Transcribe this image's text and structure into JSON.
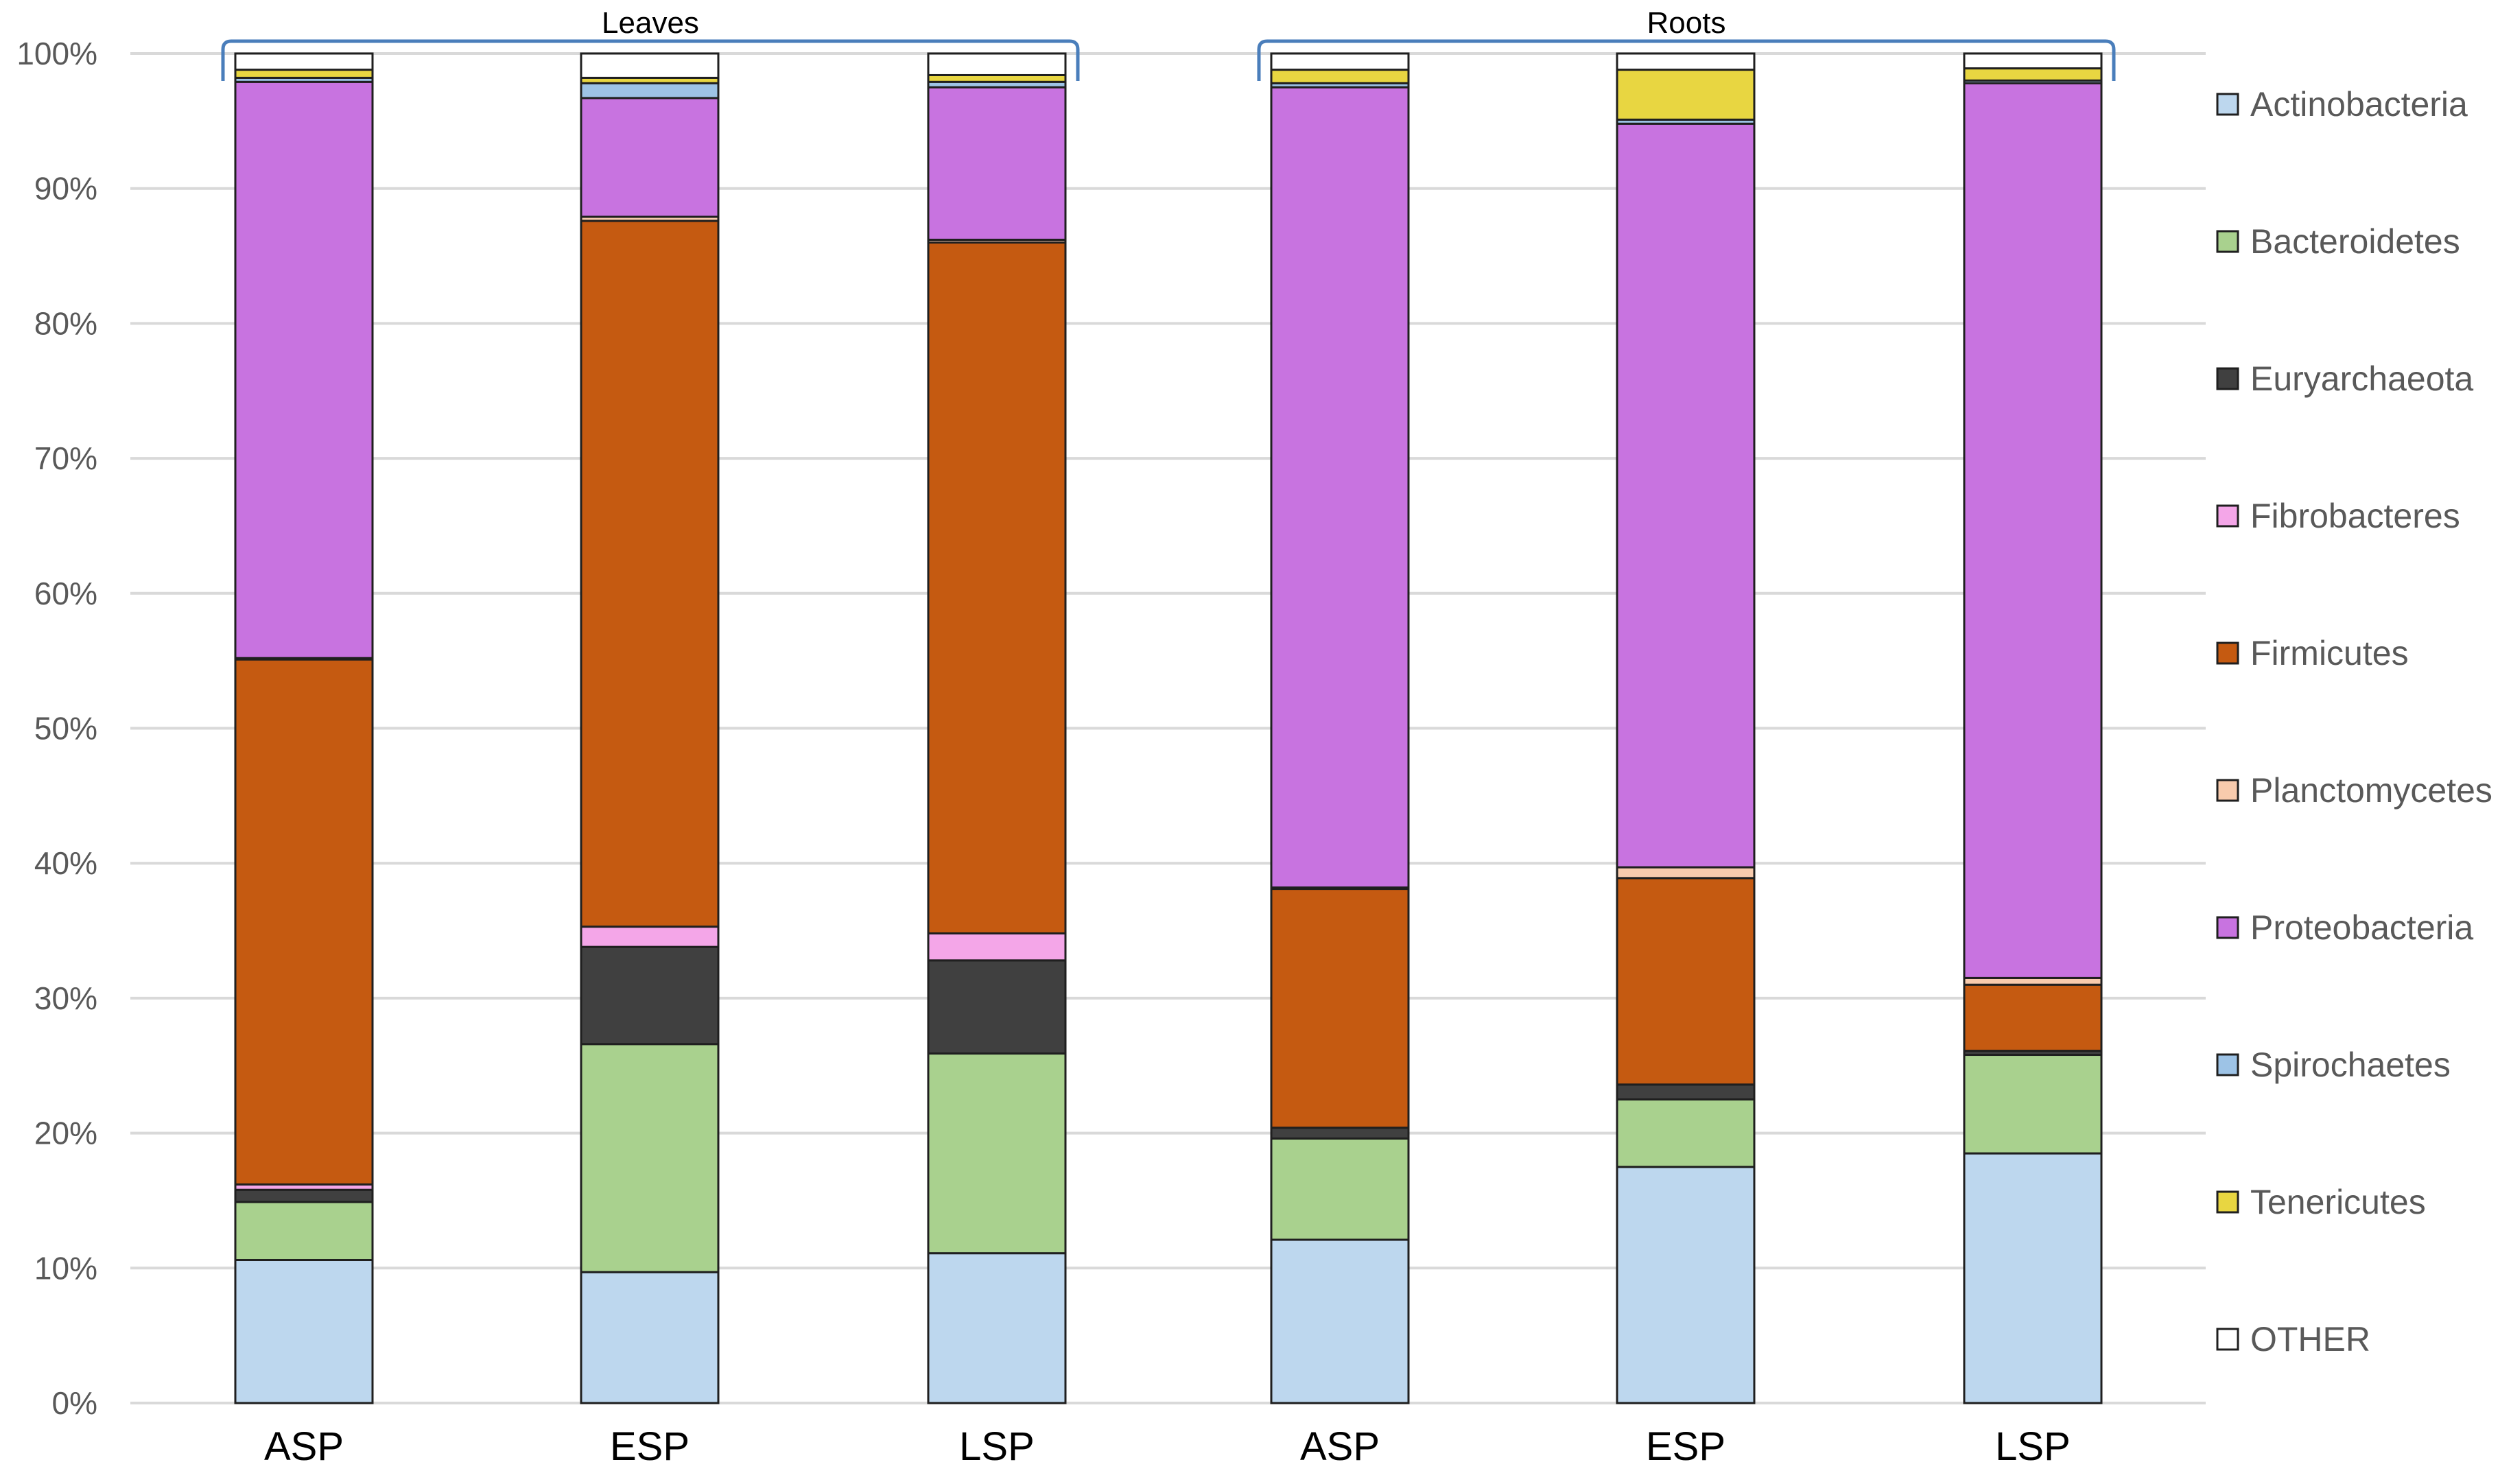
{
  "chart_data": {
    "type": "bar",
    "stacked": true,
    "percent": true,
    "title": "",
    "xlabel": "",
    "ylabel": "",
    "ylim": [
      0,
      100
    ],
    "yticks": [
      "0%",
      "10%",
      "20%",
      "30%",
      "40%",
      "50%",
      "60%",
      "70%",
      "80%",
      "90%",
      "100%"
    ],
    "groups": [
      {
        "label": "Leaves",
        "categories": [
          0,
          1,
          2
        ]
      },
      {
        "label": "Roots",
        "categories": [
          3,
          4,
          5
        ]
      }
    ],
    "categories": [
      "ASP",
      "ESP",
      "LSP",
      "ASP",
      "ESP",
      "LSP"
    ],
    "series": [
      {
        "name": "Actinobacteria",
        "color": "#bdd7ee",
        "values": [
          10.6,
          9.7,
          11.1,
          12.1,
          17.5,
          18.5
        ]
      },
      {
        "name": "Bacteroidetes",
        "color": "#a9d18e",
        "values": [
          4.3,
          16.9,
          14.8,
          7.5,
          5.0,
          7.3
        ]
      },
      {
        "name": "Euryarchaeota",
        "color": "#404040",
        "values": [
          0.9,
          7.2,
          6.9,
          0.8,
          1.1,
          0.3
        ]
      },
      {
        "name": "Fibrobacteres",
        "color": "#f4a6e8",
        "values": [
          0.4,
          1.5,
          2.0,
          0.0,
          0.0,
          0.0
        ]
      },
      {
        "name": "Firmicutes",
        "color": "#c55a11",
        "values": [
          38.9,
          52.3,
          51.2,
          17.7,
          15.3,
          4.9
        ]
      },
      {
        "name": "Planctomycetes",
        "color": "#f8cbad",
        "values": [
          0.1,
          0.3,
          0.2,
          0.1,
          0.8,
          0.5
        ]
      },
      {
        "name": "Proteobacteria",
        "color": "#c873e0",
        "values": [
          42.7,
          8.8,
          11.3,
          59.3,
          55.1,
          66.3
        ]
      },
      {
        "name": "Spirochaetes",
        "color": "#9dc3e6",
        "values": [
          0.3,
          1.1,
          0.4,
          0.3,
          0.3,
          0.2
        ]
      },
      {
        "name": "Tenericutes",
        "color": "#e8d641",
        "values": [
          0.6,
          0.4,
          0.5,
          1.0,
          3.7,
          0.9
        ]
      },
      {
        "name": "OTHER",
        "color": "#ffffff",
        "values": [
          1.2,
          1.8,
          1.6,
          1.2,
          1.2,
          1.1
        ]
      }
    ],
    "legend_position": "right"
  }
}
